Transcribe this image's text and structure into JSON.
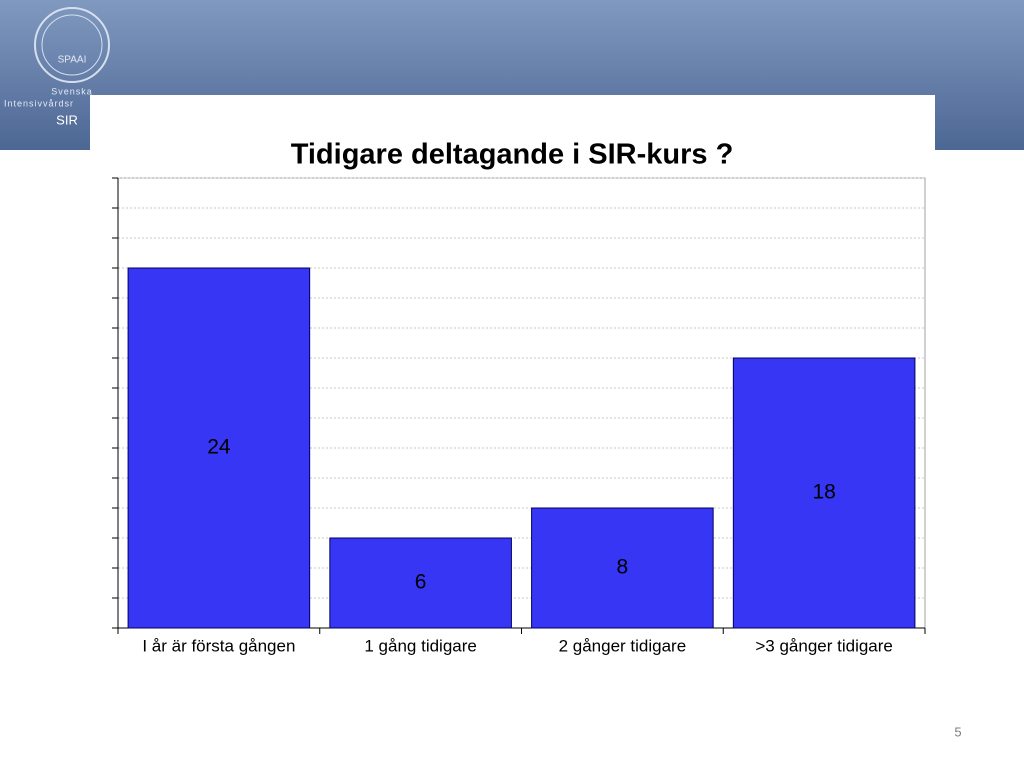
{
  "slide": {
    "logo_emblem": "SPAAI",
    "logo_lines": [
      "Svenska",
      "Intensivvårdsr",
      "SIR"
    ],
    "page_number": "5"
  },
  "chart_data": {
    "type": "bar",
    "title": "Tidigare deltagande i SIR-kurs ?",
    "categories": [
      "I år är första gången",
      "1 gång tidigare",
      "2 gånger tidigare",
      ">3 gånger tidigare"
    ],
    "values": [
      24,
      6,
      8,
      18
    ],
    "color": "#3636f4",
    "ylim": [
      0,
      30
    ],
    "yticks": [
      0,
      2,
      4,
      6,
      8,
      10,
      12,
      14,
      16,
      18,
      20,
      22,
      24,
      26,
      28,
      30
    ],
    "grid": true
  }
}
